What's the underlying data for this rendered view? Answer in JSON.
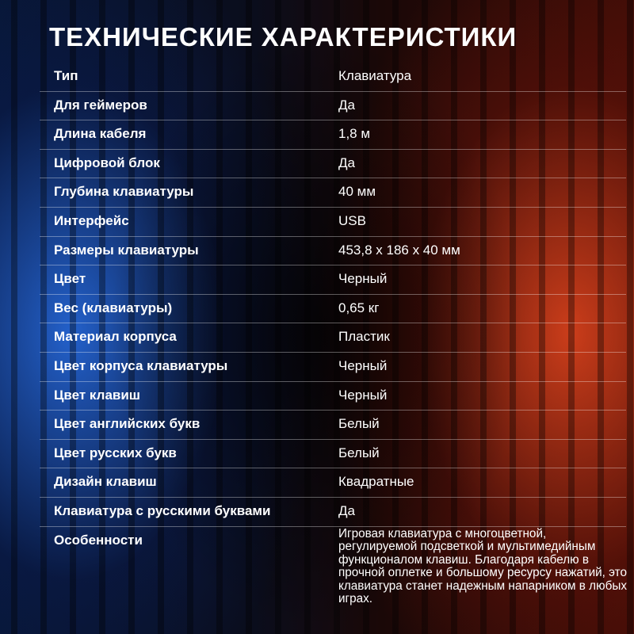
{
  "title": "ТЕХНИЧЕСКИЕ ХАРАКТЕРИСТИКИ",
  "table": {
    "rows": [
      [
        "Тип",
        "Клавиатура"
      ],
      [
        "Для геймеров",
        "Да"
      ],
      [
        "Длина кабеля",
        "1,8 м"
      ],
      [
        "Цифровой блок",
        "Да"
      ],
      [
        "Глубина клавиатуры",
        "40 мм"
      ],
      [
        "Интерфейс",
        "USB"
      ],
      [
        "Размеры клавиатуры",
        "453,8 x 186 x 40 мм"
      ],
      [
        "Цвет",
        "Черный"
      ],
      [
        "Вес (клавиатуры)",
        "0,65 кг"
      ],
      [
        "Материал корпуса",
        "Пластик"
      ],
      [
        "Цвет корпуса клавиатуры",
        "Черный"
      ],
      [
        "Цвет клавиш",
        "Черный"
      ],
      [
        "Цвет английских букв",
        "Белый"
      ],
      [
        "Цвет русских букв",
        "Белый"
      ],
      [
        "Дизайн клавиш",
        "Квадратные"
      ],
      [
        "Клавиатура с русскими буквами",
        "Да"
      ],
      [
        "Особенности",
        "Игровая клавиатура с многоцветной, регулируемой подсветкой и мультимедийным функционалом клавиш. Благодаря кабелю в прочной оплетке и большому ресурсу нажатий, это клавиатура станет надежным напарником в любых играх."
      ]
    ]
  }
}
